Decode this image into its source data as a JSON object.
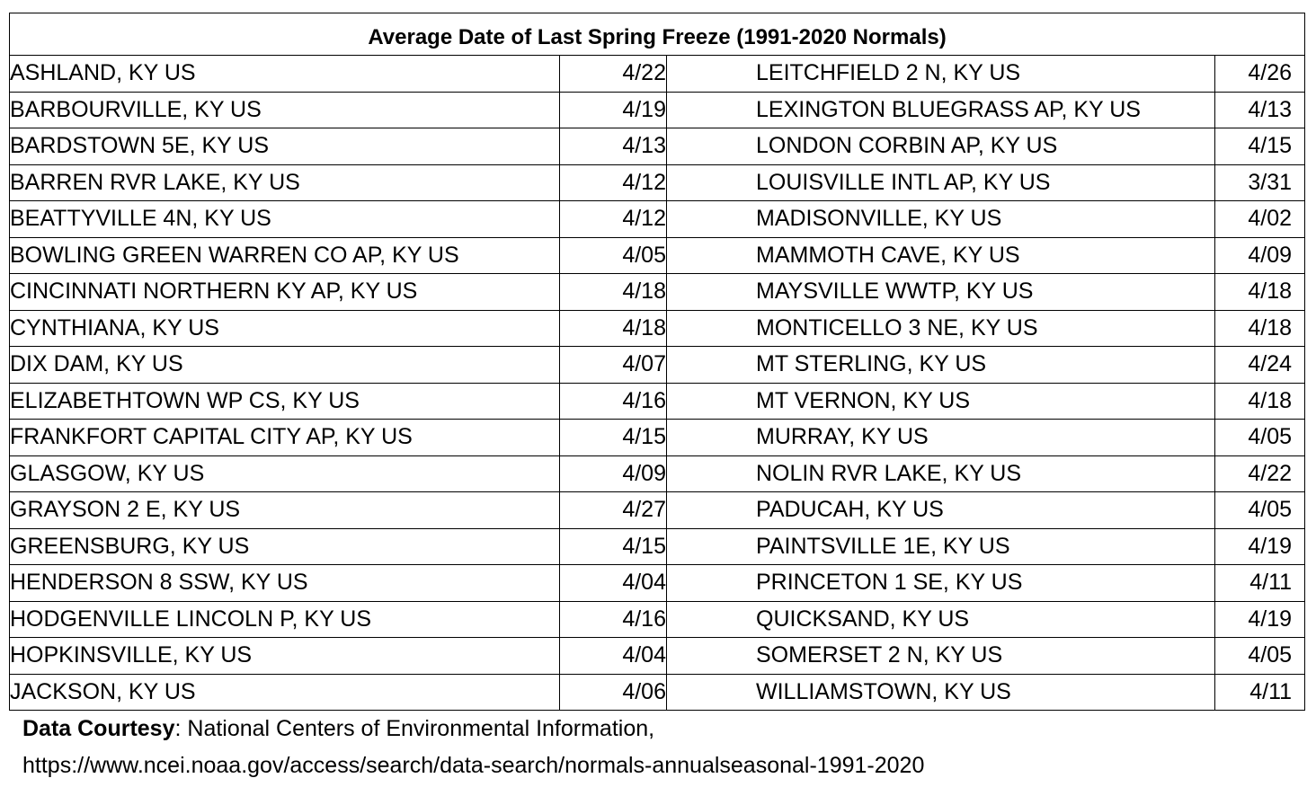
{
  "title": "Average Date of Last Spring Freeze (1991-2020 Normals)",
  "rows": [
    {
      "left_station": "ASHLAND, KY US",
      "left_date": "4/22",
      "right_station": "LEITCHFIELD 2 N, KY US",
      "right_date": "4/26"
    },
    {
      "left_station": "BARBOURVILLE, KY US",
      "left_date": "4/19",
      "right_station": "LEXINGTON BLUEGRASS AP, KY US",
      "right_date": "4/13"
    },
    {
      "left_station": "BARDSTOWN 5E, KY US",
      "left_date": "4/13",
      "right_station": "LONDON CORBIN AP, KY US",
      "right_date": "4/15"
    },
    {
      "left_station": "BARREN RVR LAKE, KY US",
      "left_date": "4/12",
      "right_station": "LOUISVILLE INTL AP, KY US",
      "right_date": "3/31"
    },
    {
      "left_station": "BEATTYVILLE 4N, KY US",
      "left_date": "4/12",
      "right_station": "MADISONVILLE, KY US",
      "right_date": "4/02"
    },
    {
      "left_station": "BOWLING GREEN WARREN CO AP, KY US",
      "left_date": "4/05",
      "right_station": "MAMMOTH CAVE, KY US",
      "right_date": "4/09"
    },
    {
      "left_station": "CINCINNATI NORTHERN KY AP, KY US",
      "left_date": "4/18",
      "right_station": "MAYSVILLE WWTP, KY US",
      "right_date": "4/18"
    },
    {
      "left_station": "CYNTHIANA, KY US",
      "left_date": "4/18",
      "right_station": "MONTICELLO 3 NE, KY US",
      "right_date": "4/18"
    },
    {
      "left_station": "DIX DAM, KY US",
      "left_date": "4/07",
      "right_station": "MT STERLING, KY US",
      "right_date": "4/24"
    },
    {
      "left_station": "ELIZABETHTOWN WP CS, KY US",
      "left_date": "4/16",
      "right_station": "MT VERNON, KY US",
      "right_date": "4/18"
    },
    {
      "left_station": "FRANKFORT CAPITAL CITY AP, KY US",
      "left_date": "4/15",
      "right_station": "MURRAY, KY US",
      "right_date": "4/05"
    },
    {
      "left_station": "GLASGOW, KY US",
      "left_date": "4/09",
      "right_station": "NOLIN RVR LAKE, KY US",
      "right_date": "4/22"
    },
    {
      "left_station": "GRAYSON 2 E, KY US",
      "left_date": "4/27",
      "right_station": "PADUCAH, KY US",
      "right_date": "4/05"
    },
    {
      "left_station": "GREENSBURG, KY US",
      "left_date": "4/15",
      "right_station": "PAINTSVILLE 1E, KY US",
      "right_date": "4/19"
    },
    {
      "left_station": "HENDERSON 8 SSW, KY US",
      "left_date": "4/04",
      "right_station": "PRINCETON 1 SE, KY US",
      "right_date": "4/11"
    },
    {
      "left_station": "HODGENVILLE LINCOLN P, KY US",
      "left_date": "4/16",
      "right_station": "QUICKSAND, KY US",
      "right_date": "4/19"
    },
    {
      "left_station": "HOPKINSVILLE, KY US",
      "left_date": "4/04",
      "right_station": "SOMERSET 2 N, KY US",
      "right_date": "4/05"
    },
    {
      "left_station": "JACKSON, KY US",
      "left_date": "4/06",
      "right_station": "WILLIAMSTOWN, KY US",
      "right_date": "4/11"
    }
  ],
  "footer": {
    "label": "Data Courtesy",
    "source": ": National Centers of Environmental Information,",
    "url": "https://www.ncei.noaa.gov/access/search/data-search/normals-annualseasonal-1991-2020"
  }
}
